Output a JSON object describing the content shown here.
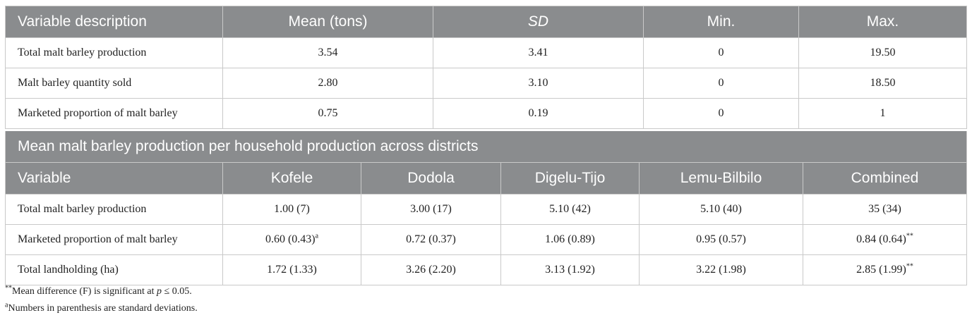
{
  "table1": {
    "headers": [
      "Variable description",
      "Mean (tons)",
      "SD",
      "Min.",
      "Max."
    ],
    "rows": [
      [
        "Total malt barley production",
        "3.54",
        "3.41",
        "0",
        "19.50"
      ],
      [
        "Malt barley quantity sold",
        "2.80",
        "3.10",
        "0",
        "18.50"
      ],
      [
        "Marketed proportion of malt barley",
        "0.75",
        "0.19",
        "0",
        "1"
      ]
    ]
  },
  "table2": {
    "title": "Mean malt barley production per household production across districts",
    "headers": [
      "Variable",
      "Kofele",
      "Dodola",
      "Digelu-Tijo",
      "Lemu-Bilbilo",
      "Combined"
    ],
    "rows": [
      [
        "Total malt barley production",
        "1.00 (7)",
        "3.00 (17)",
        "5.10 (42)",
        "5.10 (40)",
        "35 (34)"
      ],
      [
        "Marketed proportion of malt barley",
        "0.60 (0.43)",
        "0.72 (0.37)",
        "1.06 (0.89)",
        "0.95 (0.57)",
        "0.84 (0.64)"
      ],
      [
        "Total landholding (ha)",
        "1.72 (1.33)",
        "3.26 (2.20)",
        "3.13 (1.92)",
        "3.22 (1.98)",
        "2.85 (1.99)"
      ]
    ],
    "marks": {
      "row1_kofele": "a",
      "row1_combined": "**",
      "row2_combined": "**"
    }
  },
  "notes": {
    "note1_mark": "**",
    "note1_text": "Mean difference (F) is significant at",
    "note1_p": "p",
    "note1_tail": "≤ 0.05.",
    "note2_mark": "a",
    "note2_text": "Numbers in parenthesis are standard deviations."
  }
}
